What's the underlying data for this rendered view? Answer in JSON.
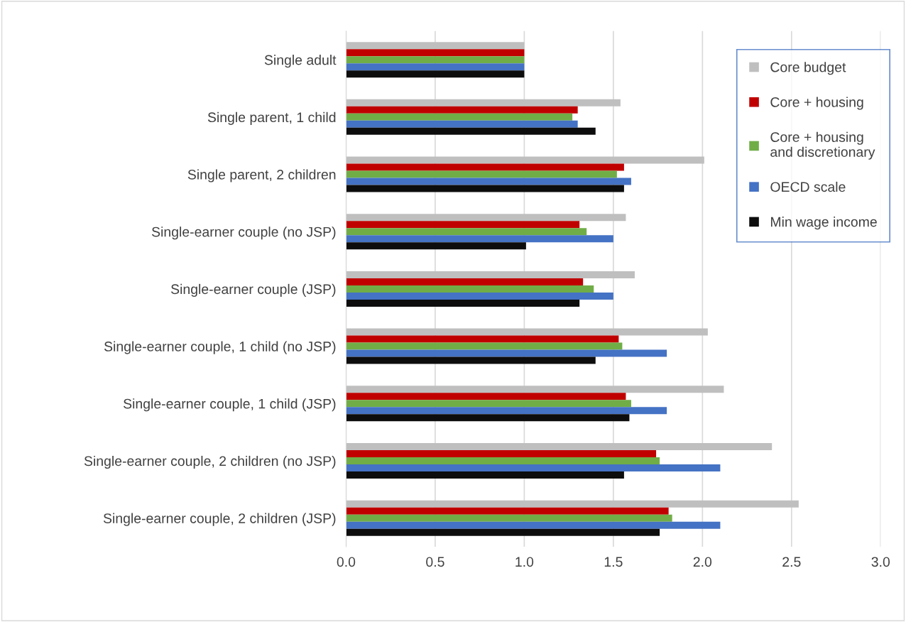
{
  "chart_data": {
    "type": "bar",
    "orientation": "horizontal",
    "categories": [
      "Single adult",
      "Single parent, 1 child",
      "Single parent, 2 children",
      "Single-earner couple (no JSP)",
      "Single-earner couple (JSP)",
      "Single-earner couple, 1 child (no JSP)",
      "Single-earner couple, 1 child (JSP)",
      "Single-earner couple, 2 children (no JSP)",
      "Single-earner couple, 2 children (JSP)"
    ],
    "series": [
      {
        "name": "Core budget",
        "color": "#bfbfbf",
        "values": [
          1.0,
          1.54,
          2.01,
          1.57,
          1.62,
          2.03,
          2.12,
          2.39,
          2.54
        ]
      },
      {
        "name": "Core + housing",
        "color": "#c00000",
        "values": [
          1.0,
          1.3,
          1.56,
          1.31,
          1.33,
          1.53,
          1.57,
          1.74,
          1.81
        ]
      },
      {
        "name": "Core + housing\nand discretionary",
        "color": "#70ad47",
        "values": [
          1.0,
          1.27,
          1.52,
          1.35,
          1.39,
          1.55,
          1.6,
          1.76,
          1.83
        ]
      },
      {
        "name": "OECD scale",
        "color": "#4472c4",
        "values": [
          1.0,
          1.3,
          1.6,
          1.5,
          1.5,
          1.8,
          1.8,
          2.1,
          2.1
        ]
      },
      {
        "name": "Min wage income",
        "color": "#0d0d0d",
        "values": [
          1.0,
          1.4,
          1.56,
          1.01,
          1.31,
          1.4,
          1.59,
          1.56,
          1.76
        ]
      }
    ],
    "xlim": [
      0,
      3
    ],
    "xticks": [
      {
        "value": 0,
        "label": "0.0"
      },
      {
        "value": 0.5,
        "label": "0.5"
      },
      {
        "value": 1,
        "label": "1.0"
      },
      {
        "value": 1.5,
        "label": "1.5"
      },
      {
        "value": 2,
        "label": "2.0"
      },
      {
        "value": 2.5,
        "label": "2.5"
      },
      {
        "value": 3,
        "label": "3.0"
      }
    ],
    "grid": "x",
    "legend": "right"
  }
}
